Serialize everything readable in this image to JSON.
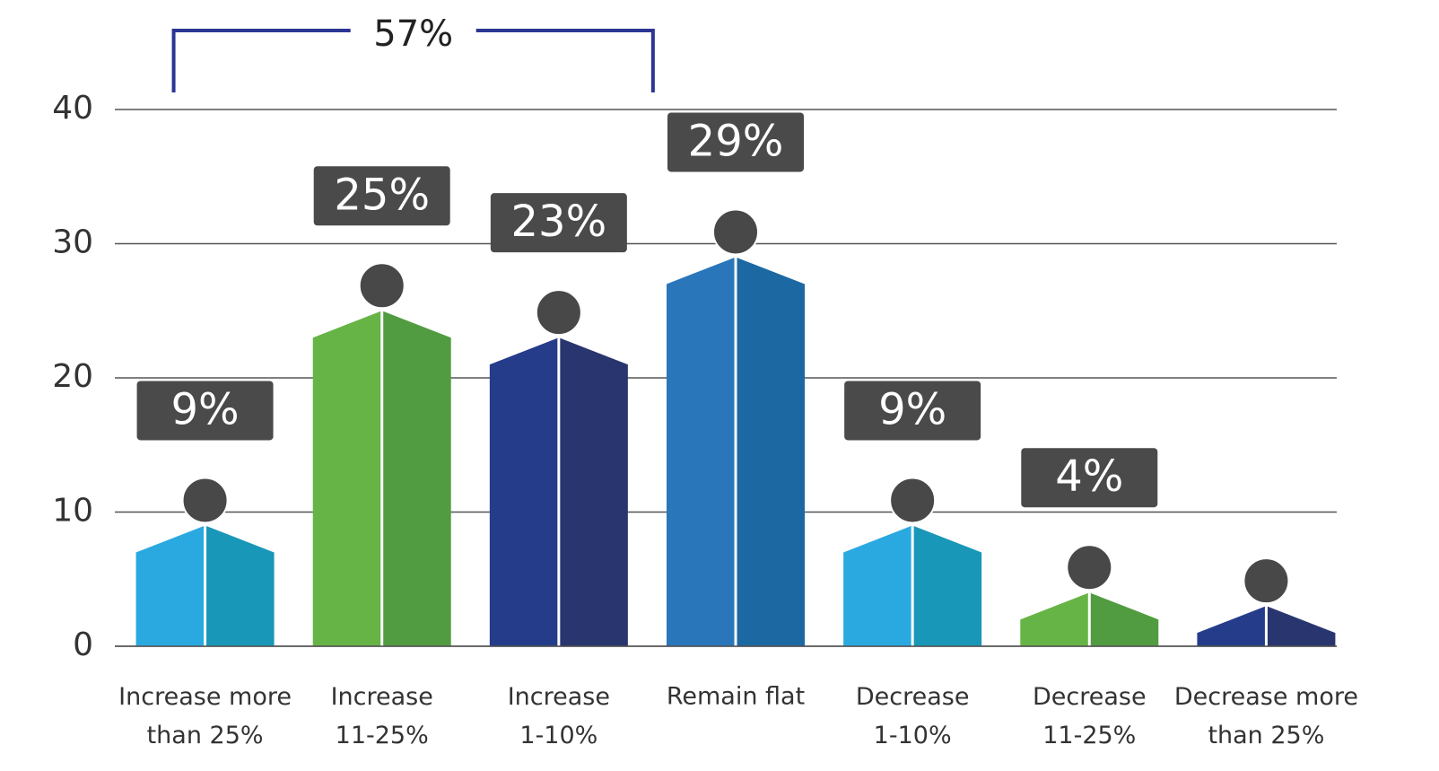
{
  "chart_data": {
    "type": "pictograph-bar",
    "categories": [
      "Increase more\nthan 25%",
      "Increase\n11-25%",
      "Increase\n1-10%",
      "Remain flat",
      "Decrease\n1-10%",
      "Decrease\n11-25%",
      "Decrease more\nthan 25%"
    ],
    "values": [
      9,
      25,
      23,
      29,
      9,
      4,
      3
    ],
    "value_labels": [
      "9%",
      "25%",
      "23%",
      "29%",
      "9%",
      "4%",
      null
    ],
    "colors": [
      "#29a9e0",
      "#66b445",
      "#243c8a",
      "#2a76bb",
      "#29a9e0",
      "#66b445",
      "#243c8a"
    ],
    "dark_colors": [
      "#1897b8",
      "#519c41",
      "#29356e",
      "#1c68a3",
      "#1897b8",
      "#519c41",
      "#29356e"
    ],
    "ylim": [
      0,
      40
    ],
    "yticks": [
      0,
      10,
      20,
      30,
      40
    ],
    "grid": true,
    "annotation": {
      "text": "57%",
      "from": 0,
      "to": 2
    }
  }
}
